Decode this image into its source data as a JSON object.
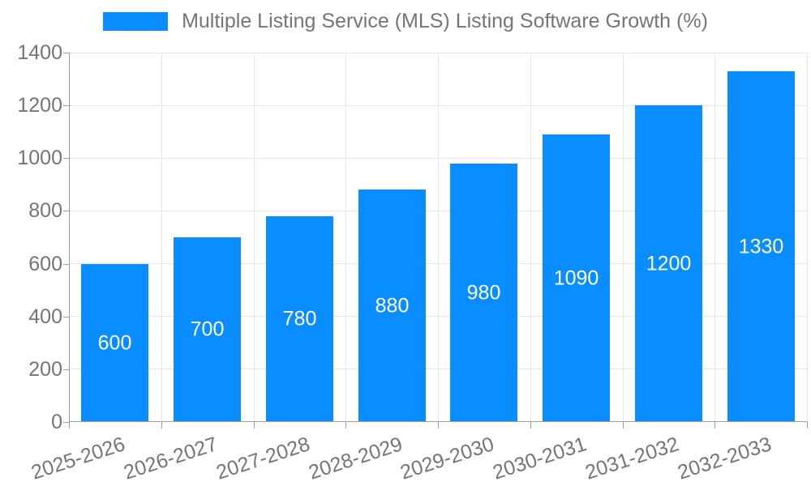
{
  "legend": {
    "label": "Multiple Listing Service (MLS) Listing Software Growth (%)"
  },
  "chart_data": {
    "type": "bar",
    "title": "Multiple Listing Service (MLS) Listing Software Growth (%)",
    "categories": [
      "2025-2026",
      "2026-2027",
      "2027-2028",
      "2028-2029",
      "2029-2030",
      "2030-2031",
      "2031-2032",
      "2032-2033"
    ],
    "values": [
      600,
      700,
      780,
      880,
      980,
      1090,
      1200,
      1330
    ],
    "xlabel": "",
    "ylabel": "",
    "ylim": [
      0,
      1400
    ],
    "y_ticks": [
      0,
      200,
      400,
      600,
      800,
      1000,
      1200,
      1400
    ],
    "grid": true,
    "legend_position": "top",
    "bar_value_labels_visible": true
  },
  "colors": {
    "bar": "#0a8dff",
    "axis_text": "#757575",
    "grid_line": "#e6e6e6",
    "axis_line": "#9e9e9e",
    "value_label": "#ffffff",
    "background": "#ffffff"
  }
}
